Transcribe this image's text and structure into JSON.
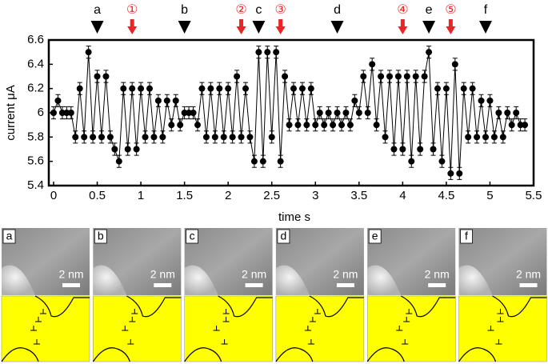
{
  "chart_data": {
    "type": "line",
    "x_label": "time s",
    "y_label": "current μA",
    "xlim": [
      0,
      5.5
    ],
    "xticks": [
      0,
      0.5,
      1,
      1.5,
      2,
      2.5,
      3,
      3.5,
      4,
      4.5,
      5,
      5.5
    ],
    "ylim": [
      5.4,
      6.6
    ],
    "yticks": [
      5.4,
      5.6,
      5.8,
      6,
      6.2,
      6.4,
      6.6
    ],
    "x": [
      0,
      0.05,
      0.1,
      0.15,
      0.2,
      0.25,
      0.3,
      0.35,
      0.4,
      0.45,
      0.5,
      0.55,
      0.6,
      0.65,
      0.7,
      0.75,
      0.8,
      0.85,
      0.9,
      0.95,
      1,
      1.05,
      1.1,
      1.15,
      1.2,
      1.25,
      1.3,
      1.35,
      1.4,
      1.45,
      1.5,
      1.55,
      1.6,
      1.65,
      1.7,
      1.75,
      1.8,
      1.85,
      1.9,
      1.95,
      2,
      2.05,
      2.1,
      2.15,
      2.2,
      2.25,
      2.3,
      2.35,
      2.4,
      2.45,
      2.5,
      2.55,
      2.6,
      2.65,
      2.7,
      2.75,
      2.8,
      2.85,
      2.9,
      2.95,
      3,
      3.05,
      3.1,
      3.15,
      3.2,
      3.25,
      3.3,
      3.35,
      3.4,
      3.45,
      3.5,
      3.55,
      3.6,
      3.65,
      3.7,
      3.75,
      3.8,
      3.85,
      3.9,
      3.95,
      4,
      4.05,
      4.1,
      4.15,
      4.2,
      4.25,
      4.3,
      4.35,
      4.4,
      4.45,
      4.5,
      4.55,
      4.6,
      4.65,
      4.7,
      4.75,
      4.8,
      4.85,
      4.9,
      4.95,
      5,
      5.05,
      5.1,
      5.15,
      5.2,
      5.25,
      5.3,
      5.35,
      5.4
    ],
    "series": [
      {
        "color": "#000000",
        "error": 0.05,
        "values": [
          6.0,
          6.1,
          6.0,
          6.0,
          6.0,
          5.8,
          6.2,
          5.8,
          6.5,
          5.8,
          6.3,
          5.8,
          6.3,
          5.8,
          5.7,
          5.6,
          6.2,
          5.7,
          6.2,
          5.7,
          6.2,
          5.8,
          6.2,
          5.8,
          6.1,
          5.8,
          6.1,
          5.9,
          6.1,
          5.9,
          6.0,
          6.0,
          6.0,
          5.9,
          6.2,
          5.8,
          6.2,
          5.8,
          6.2,
          5.8,
          6.2,
          5.8,
          6.3,
          5.8,
          6.2,
          5.8,
          5.6,
          6.5,
          5.6,
          6.5,
          5.8,
          6.5,
          5.6,
          6.3,
          5.9,
          6.2,
          5.9,
          6.2,
          5.9,
          6.2,
          5.9,
          6.0,
          5.9,
          6.0,
          5.9,
          6.0,
          5.9,
          6.0,
          5.9,
          6.1,
          6.0,
          6.3,
          6.0,
          6.4,
          5.9,
          6.3,
          5.8,
          6.3,
          5.7,
          6.3,
          5.7,
          6.3,
          5.6,
          6.3,
          5.7,
          6.3,
          6.5,
          5.7,
          6.2,
          5.6,
          6.2,
          5.5,
          6.4,
          5.5,
          6.2,
          5.8,
          6.2,
          5.8,
          6.1,
          5.8,
          6.1,
          5.8,
          6.0,
          5.8,
          6.0,
          5.9,
          6.0,
          5.9,
          5.9
        ]
      }
    ],
    "markers": [
      {
        "label": "a",
        "x": 0.5,
        "color": "#000000"
      },
      {
        "label": "①",
        "x": 0.9,
        "color": "#e8262a"
      },
      {
        "label": "b",
        "x": 1.5,
        "color": "#000000"
      },
      {
        "label": "②",
        "x": 2.15,
        "color": "#e8262a"
      },
      {
        "label": "c",
        "x": 2.35,
        "color": "#000000"
      },
      {
        "label": "③",
        "x": 2.6,
        "color": "#e8262a"
      },
      {
        "label": "d",
        "x": 3.25,
        "color": "#000000"
      },
      {
        "label": "④",
        "x": 4.0,
        "color": "#e8262a"
      },
      {
        "label": "e",
        "x": 4.3,
        "color": "#000000"
      },
      {
        "label": "⑤",
        "x": 4.55,
        "color": "#e8262a"
      },
      {
        "label": "f",
        "x": 4.95,
        "color": "#000000"
      }
    ]
  },
  "panels": [
    {
      "label": "a",
      "scale": "2 nm"
    },
    {
      "label": "b",
      "scale": "2 nm"
    },
    {
      "label": "c",
      "scale": "2 nm"
    },
    {
      "label": "d",
      "scale": "2 nm"
    },
    {
      "label": "e",
      "scale": "2 nm"
    },
    {
      "label": "f",
      "scale": "2 nm"
    }
  ]
}
